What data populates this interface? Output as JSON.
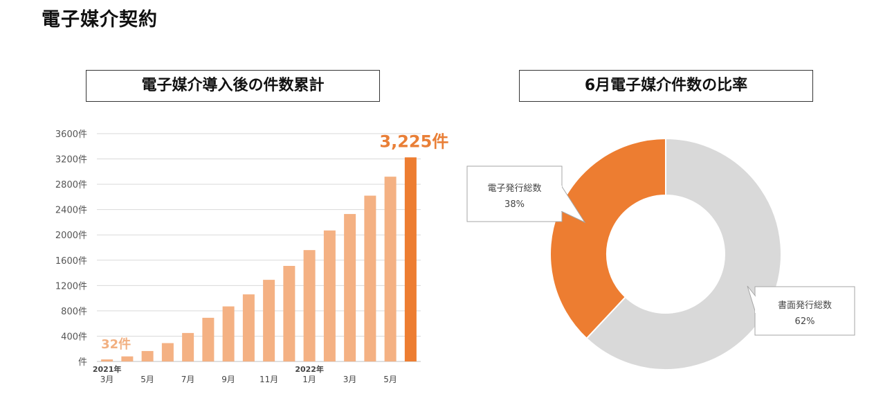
{
  "page_title": "電子媒介契約",
  "chart_data": [
    {
      "type": "bar",
      "title": "電子媒介導入後の件数累計",
      "unit": "件",
      "ylim": [
        0,
        3600
      ],
      "ytick_labels": [
        "件",
        "400件",
        "800件",
        "1200件",
        "1600件",
        "2000件",
        "2400件",
        "2800件",
        "3200件",
        "3600件"
      ],
      "grid": true,
      "x_labels": [
        {
          "year": "2021年",
          "month": "3月"
        },
        {
          "year": "",
          "month": ""
        },
        {
          "year": "",
          "month": "5月"
        },
        {
          "year": "",
          "month": ""
        },
        {
          "year": "",
          "month": "7月"
        },
        {
          "year": "",
          "month": ""
        },
        {
          "year": "",
          "month": "9月"
        },
        {
          "year": "",
          "month": ""
        },
        {
          "year": "",
          "month": "11月"
        },
        {
          "year": "",
          "month": ""
        },
        {
          "year": "2022年",
          "month": "1月"
        },
        {
          "year": "",
          "month": ""
        },
        {
          "year": "",
          "month": "3月"
        },
        {
          "year": "",
          "month": ""
        },
        {
          "year": "",
          "month": "5月"
        },
        {
          "year": "",
          "month": ""
        }
      ],
      "values": [
        32,
        80,
        165,
        290,
        450,
        690,
        870,
        1060,
        1290,
        1510,
        1760,
        2070,
        2330,
        2620,
        2920,
        3225
      ],
      "highlight_index": 15,
      "colors": {
        "bar": "#f4b183",
        "highlight": "#ed7d31",
        "grid": "#d9d9d9"
      },
      "annotations": {
        "first": "32件",
        "last": "3,225件"
      }
    },
    {
      "type": "pie",
      "style": "donut",
      "title": "6月電子媒介件数の比率",
      "slices": [
        {
          "label": "書面発行総数",
          "value": 62,
          "pct": "62%",
          "color": "#d9d9d9"
        },
        {
          "label": "電子発行総数",
          "value": 38,
          "pct": "38%",
          "color": "#ed7d31"
        }
      ]
    }
  ]
}
